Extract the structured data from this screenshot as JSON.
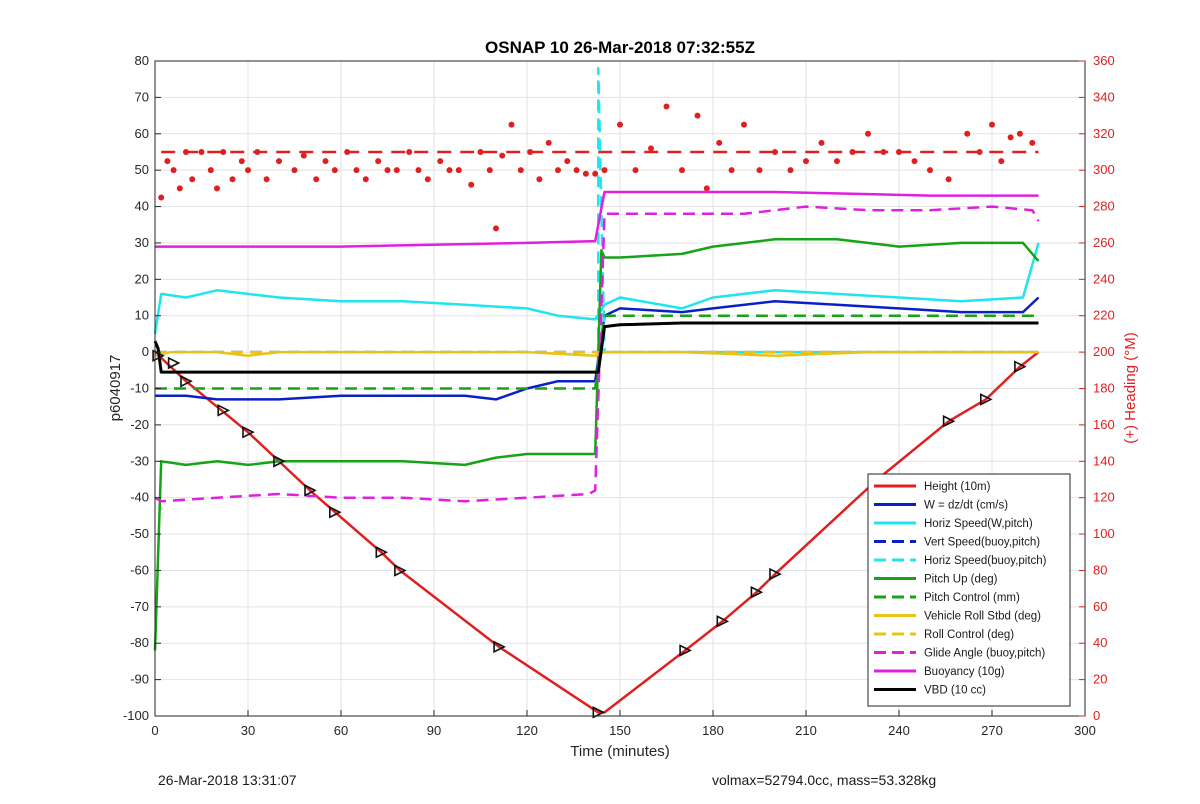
{
  "chart_data": {
    "type": "line",
    "title": "OSNAP 10 26-Mar-2018 07:32:55Z",
    "xlabel": "Time (minutes)",
    "ylabel_left": "p6040917",
    "ylabel_right": "(+) Heading (°M)",
    "xlim": [
      0,
      300
    ],
    "ylim_left": [
      -100,
      80
    ],
    "ylim_right": [
      0,
      360
    ],
    "grid": true,
    "legend_position": "bottom-right",
    "x_ticks": [
      0,
      30,
      60,
      90,
      120,
      150,
      180,
      210,
      240,
      270,
      300
    ],
    "y_left_ticks": [
      80,
      70,
      60,
      50,
      40,
      30,
      20,
      10,
      0,
      -10,
      -20,
      -30,
      -40,
      -50,
      -60,
      -70,
      -80,
      -90,
      -100
    ],
    "y_right_ticks": [
      360,
      340,
      320,
      300,
      280,
      260,
      240,
      220,
      200,
      180,
      160,
      140,
      120,
      100,
      80,
      60,
      40,
      20,
      0
    ],
    "heading_target": 310,
    "series": [
      {
        "name": "Height (10m)",
        "color": "#e02020",
        "dash": "solid",
        "x": [
          0,
          10,
          30,
          50,
          73,
          79,
          111,
          143,
          145,
          171,
          183,
          194,
          200,
          233,
          256,
          268,
          279,
          285
        ],
        "y": [
          0,
          -8,
          -22,
          -38,
          -55,
          -60,
          -81,
          -99,
          -99,
          -82,
          -74,
          -66,
          -61,
          -35,
          -19,
          -13,
          -4,
          0
        ]
      },
      {
        "name": "W = dz/dt (cm/s)",
        "color": "#0a1fc7",
        "dash": "solid",
        "x": [
          0,
          2,
          10,
          20,
          40,
          60,
          80,
          100,
          110,
          120,
          130,
          142,
          145,
          150,
          170,
          180,
          200,
          220,
          240,
          260,
          280,
          285
        ],
        "y": [
          -12,
          -12,
          -12,
          -13,
          -13,
          -12,
          -12,
          -12,
          -13,
          -10,
          -8,
          -8,
          10,
          12,
          11,
          12,
          14,
          13,
          12,
          11,
          11,
          15
        ]
      },
      {
        "name": "Horiz Speed(W,pitch)",
        "color": "#20e4ee",
        "dash": "solid",
        "x": [
          0,
          2,
          10,
          20,
          40,
          60,
          80,
          100,
          120,
          130,
          142,
          145,
          150,
          170,
          180,
          200,
          220,
          240,
          260,
          280,
          285
        ],
        "y": [
          5,
          16,
          15,
          17,
          15,
          14,
          14,
          13,
          12,
          10,
          9,
          13,
          15,
          12,
          15,
          17,
          16,
          15,
          14,
          15,
          30
        ]
      },
      {
        "name": "Vert Speed(buoy,pitch)",
        "color": "#0a1fc7",
        "dash": "dash",
        "x": [
          0,
          142,
          143,
          285
        ],
        "y": [
          0,
          0,
          0,
          0
        ]
      },
      {
        "name": "Horiz Speed(buoy,pitch)",
        "color": "#20e4ee",
        "dash": "dash",
        "x": [
          0,
          142,
          143,
          143,
          145,
          285
        ],
        "y": [
          0,
          0,
          0,
          78,
          0,
          0
        ]
      },
      {
        "name": "Pitch Up (deg)",
        "color": "#16a316",
        "dash": "solid",
        "x": [
          0,
          2,
          10,
          20,
          30,
          40,
          60,
          80,
          100,
          110,
          120,
          142,
          144,
          145,
          150,
          170,
          180,
          200,
          220,
          240,
          260,
          280,
          285
        ],
        "y": [
          -82,
          -30,
          -31,
          -30,
          -31,
          -30,
          -30,
          -30,
          -31,
          -29,
          -28,
          -28,
          28,
          26,
          26,
          27,
          29,
          31,
          31,
          29,
          30,
          30,
          25
        ]
      },
      {
        "name": "Pitch Control (mm)",
        "color": "#16a316",
        "dash": "dash",
        "x": [
          0,
          142,
          145,
          285
        ],
        "y": [
          -10,
          -10,
          10,
          10
        ]
      },
      {
        "name": "Vehicle Roll Stbd (deg)",
        "color": "#e8c418",
        "dash": "solid",
        "x": [
          0,
          5,
          10,
          20,
          30,
          40,
          60,
          80,
          100,
          120,
          142,
          145,
          170,
          200,
          230,
          260,
          285
        ],
        "y": [
          -1,
          0,
          0,
          0,
          -1,
          0,
          0,
          0,
          0,
          0,
          -1,
          0,
          0,
          -1,
          0,
          0,
          0
        ]
      },
      {
        "name": "Roll Control (deg)",
        "color": "#e8c418",
        "dash": "dash",
        "x": [
          0,
          142,
          145,
          285
        ],
        "y": [
          0,
          0,
          0,
          0
        ]
      },
      {
        "name": "Glide Angle (buoy,pitch)",
        "color": "#e020e0",
        "dash": "dash",
        "x": [
          0,
          2,
          20,
          40,
          60,
          80,
          100,
          120,
          140,
          142,
          145,
          150,
          170,
          190,
          210,
          230,
          250,
          270,
          283,
          285
        ],
        "y": [
          -40,
          -41,
          -40,
          -39,
          -40,
          -40,
          -41,
          -40,
          -39,
          -38,
          38,
          38,
          38,
          38,
          40,
          39,
          39,
          40,
          39,
          36
        ]
      },
      {
        "name": "Buoyancy (10g)",
        "color": "#e020e0",
        "dash": "solid",
        "x": [
          0,
          10,
          60,
          120,
          142,
          145,
          150,
          200,
          250,
          285
        ],
        "y": [
          29,
          29,
          29,
          30,
          30.5,
          44,
          44,
          44,
          43,
          43
        ]
      },
      {
        "name": "VBD (10 cc)",
        "color": "#000000",
        "dash": "solid",
        "x": [
          0,
          1,
          2,
          142,
          143,
          145,
          150,
          170,
          285
        ],
        "y": [
          3,
          1,
          -5.5,
          -5.5,
          -5.5,
          7,
          7.5,
          8,
          8
        ]
      }
    ],
    "heading_points": {
      "x": [
        2,
        4,
        6,
        8,
        10,
        12,
        15,
        18,
        20,
        22,
        25,
        28,
        30,
        33,
        36,
        40,
        45,
        48,
        52,
        55,
        58,
        62,
        65,
        68,
        72,
        75,
        78,
        82,
        85,
        88,
        92,
        95,
        98,
        102,
        105,
        108,
        110,
        112,
        115,
        118,
        121,
        124,
        127,
        130,
        133,
        136,
        139,
        142,
        145,
        150,
        155,
        160,
        165,
        170,
        175,
        178,
        182,
        186,
        190,
        195,
        200,
        205,
        210,
        215,
        220,
        225,
        230,
        235,
        240,
        245,
        250,
        256,
        262,
        266,
        270,
        273,
        276,
        279,
        283
      ],
      "y": [
        285,
        305,
        300,
        290,
        310,
        295,
        310,
        300,
        290,
        310,
        295,
        305,
        300,
        310,
        295,
        305,
        300,
        308,
        295,
        305,
        300,
        310,
        300,
        295,
        305,
        300,
        300,
        310,
        300,
        295,
        305,
        300,
        300,
        292,
        310,
        300,
        268,
        308,
        325,
        300,
        310,
        295,
        315,
        300,
        305,
        300,
        298,
        298,
        300,
        325,
        300,
        312,
        335,
        300,
        330,
        290,
        315,
        300,
        325,
        300,
        310,
        300,
        305,
        315,
        305,
        310,
        320,
        310,
        310,
        305,
        300,
        295,
        320,
        310,
        325,
        305,
        318,
        320,
        315
      ]
    },
    "markers": {
      "x": [
        1,
        6,
        10,
        22,
        30,
        40,
        50,
        58,
        73,
        79,
        111,
        143,
        171,
        183,
        194,
        200,
        233,
        256,
        268,
        279
      ],
      "y": [
        -1,
        -3,
        -8,
        -16,
        -22,
        -30,
        -38,
        -44,
        -55,
        -60,
        -81,
        -99,
        -82,
        -74,
        -66,
        -61,
        -35,
        -19,
        -13,
        -4
      ]
    }
  },
  "footer": {
    "left_text": "26-Mar-2018 13:31:07",
    "right_text": "volmax=52794.0cc, mass=53.328kg"
  }
}
